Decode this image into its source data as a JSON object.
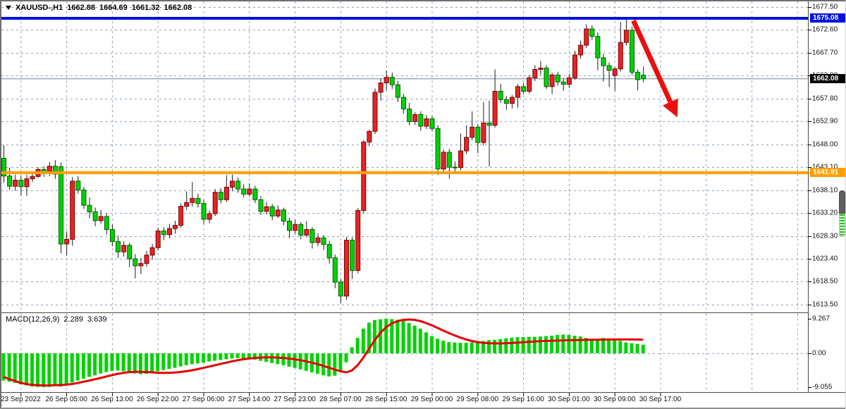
{
  "header": {
    "symbol": "XAUUSD-,H1",
    "open": "1662.88",
    "high": "1664.69",
    "low": "1661.32",
    "close": "1662.08"
  },
  "price_axis": {
    "labels": [
      "1677.50",
      "1672.60",
      "1667.70",
      "1662.80",
      "1657.80",
      "1652.90",
      "1648.00",
      "1643.10",
      "1638.10",
      "1633.20",
      "1628.30",
      "1623.40",
      "1618.50",
      "1613.50"
    ],
    "badges": {
      "resistance": {
        "text": "1675.08",
        "value": 1675.08
      },
      "current": {
        "text": "1662.08",
        "value": 1662.08
      },
      "support": {
        "text": "1641.91",
        "value": 1641.91
      }
    }
  },
  "time_axis": {
    "labels": [
      "23 Sep 2022",
      "26 Sep 05:00",
      "26 Sep 13:00",
      "26 Sep 22:00",
      "27 Sep 06:00",
      "27 Sep 14:00",
      "27 Sep 23:00",
      "28 Sep 07:00",
      "28 Sep 15:00",
      "29 Sep 00:00",
      "29 Sep 08:00",
      "29 Sep 16:00",
      "30 Sep 01:00",
      "30 Sep 09:00",
      "30 Sep 17:00"
    ],
    "first_label_bar_index": 3,
    "label_step_bars": 8
  },
  "macd_panel": {
    "name": "MACD(12,26,9)",
    "main_value": "2.289",
    "signal_value": "3.639",
    "axis_labels": [
      {
        "text": "9.267",
        "value": 9.267
      },
      {
        "text": "0.00",
        "value": 0
      },
      {
        "text": "-9.055",
        "value": -9.055
      }
    ]
  },
  "colors": {
    "bull_fill": "#e32525",
    "bull_stroke": "#7e0000",
    "bear_fill": "#00d300",
    "bear_stroke": "#005f00",
    "wick": "#1c1c1c",
    "grid": "#8ca0b8",
    "hline_resistance": "#0011dd",
    "hline_support": "#ff9f00",
    "current_price_line": "#708090",
    "badge_current_bg": "#000000",
    "macd_histogram": "#00d300",
    "macd_signal": "#e30000",
    "arrow": "#ea0f0f",
    "text": "#000000",
    "frame": "#6f6f6f"
  },
  "chart_data": {
    "type": "candlestick",
    "symbol": "XAUUSD",
    "timeframe": "H1",
    "color_note": "bullish candles red, bearish candles green (inverted scheme)",
    "price_axis_visible_range": [
      1613.5,
      1677.5
    ],
    "current_price": 1662.08,
    "hlines": [
      {
        "label": "1675.08",
        "price": 1675.08,
        "color": "#0011dd",
        "width": 4
      },
      {
        "label": "1641.91",
        "price": 1641.91,
        "color": "#ff9f00",
        "width": 4
      }
    ],
    "trend_arrow": {
      "from_bar": 110.3,
      "from_price": 1674.6,
      "to_bar": 118.0,
      "to_price": 1653.8
    },
    "candles_ohlc": [
      [
        1645.0,
        1647.8,
        1639.8,
        1641.2
      ],
      [
        1641.2,
        1643.0,
        1638.2,
        1639.0
      ],
      [
        1639.0,
        1641.5,
        1638.0,
        1640.3
      ],
      [
        1640.3,
        1641.2,
        1637.0,
        1638.9
      ],
      [
        1638.9,
        1641.5,
        1636.9,
        1640.6
      ],
      [
        1640.6,
        1642.2,
        1639.9,
        1641.1
      ],
      [
        1641.1,
        1643.1,
        1640.8,
        1642.6
      ],
      [
        1642.6,
        1643.3,
        1641.0,
        1641.9
      ],
      [
        1641.9,
        1644.2,
        1641.2,
        1643.3
      ],
      [
        1643.3,
        1644.6,
        1640.6,
        1641.6
      ],
      [
        1643.2,
        1644.1,
        1624.6,
        1626.6
      ],
      [
        1626.6,
        1629.3,
        1624.1,
        1627.6
      ],
      [
        1627.6,
        1641.0,
        1626.2,
        1640.1
      ],
      [
        1640.1,
        1641.2,
        1637.4,
        1638.2
      ],
      [
        1638.2,
        1638.9,
        1634.1,
        1634.9
      ],
      [
        1634.9,
        1636.6,
        1632.1,
        1633.5
      ],
      [
        1633.5,
        1634.4,
        1630.4,
        1631.6
      ],
      [
        1631.6,
        1633.9,
        1631.0,
        1632.5
      ],
      [
        1632.5,
        1633.1,
        1628.6,
        1629.7
      ],
      [
        1629.7,
        1630.8,
        1626.1,
        1627.1
      ],
      [
        1627.1,
        1628.4,
        1623.6,
        1624.9
      ],
      [
        1624.9,
        1627.2,
        1623.9,
        1626.3
      ],
      [
        1626.3,
        1626.9,
        1621.6,
        1623.4
      ],
      [
        1623.4,
        1624.4,
        1619.2,
        1621.9
      ],
      [
        1621.9,
        1623.6,
        1620.1,
        1622.4
      ],
      [
        1622.4,
        1625.1,
        1621.7,
        1624.2
      ],
      [
        1624.2,
        1626.6,
        1623.2,
        1625.8
      ],
      [
        1625.8,
        1630.1,
        1625.2,
        1629.4
      ],
      [
        1629.4,
        1630.2,
        1627.4,
        1628.6
      ],
      [
        1628.6,
        1630.9,
        1627.8,
        1629.9
      ],
      [
        1629.9,
        1631.6,
        1628.8,
        1630.6
      ],
      [
        1630.6,
        1635.3,
        1630.1,
        1634.7
      ],
      [
        1634.7,
        1637.9,
        1633.9,
        1635.5
      ],
      [
        1635.5,
        1639.9,
        1634.6,
        1636.4
      ],
      [
        1636.4,
        1637.4,
        1634.4,
        1635.3
      ],
      [
        1635.3,
        1636.1,
        1630.9,
        1631.9
      ],
      [
        1631.9,
        1633.8,
        1631.1,
        1633.1
      ],
      [
        1633.1,
        1638.4,
        1632.6,
        1637.7
      ],
      [
        1637.7,
        1638.6,
        1635.3,
        1636.1
      ],
      [
        1636.1,
        1641.4,
        1635.6,
        1638.8
      ],
      [
        1638.8,
        1641.5,
        1637.9,
        1640.1
      ],
      [
        1640.1,
        1640.9,
        1637.6,
        1638.4
      ],
      [
        1638.4,
        1639.4,
        1636.6,
        1637.3
      ],
      [
        1637.3,
        1639.6,
        1636.8,
        1638.4
      ],
      [
        1638.4,
        1639.1,
        1635.4,
        1636.1
      ],
      [
        1636.1,
        1636.9,
        1632.8,
        1633.6
      ],
      [
        1633.6,
        1635.6,
        1632.9,
        1634.6
      ],
      [
        1634.6,
        1635.2,
        1631.7,
        1632.6
      ],
      [
        1632.6,
        1634.9,
        1632.1,
        1633.9
      ],
      [
        1633.9,
        1634.4,
        1630.6,
        1631.5
      ],
      [
        1631.5,
        1632.2,
        1627.9,
        1629.5
      ],
      [
        1629.5,
        1631.8,
        1628.8,
        1630.8
      ],
      [
        1630.8,
        1631.3,
        1627.6,
        1628.5
      ],
      [
        1628.5,
        1631.5,
        1628.0,
        1629.7
      ],
      [
        1629.7,
        1630.2,
        1625.6,
        1626.9
      ],
      [
        1626.9,
        1628.9,
        1626.1,
        1627.9
      ],
      [
        1627.9,
        1628.5,
        1625.3,
        1626.5
      ],
      [
        1626.5,
        1627.3,
        1622.4,
        1623.6
      ],
      [
        1623.6,
        1624.3,
        1617.1,
        1618.4
      ],
      [
        1618.4,
        1619.0,
        1613.9,
        1615.4
      ],
      [
        1615.4,
        1628.1,
        1614.6,
        1627.4
      ],
      [
        1627.4,
        1628.0,
        1619.1,
        1620.9
      ],
      [
        1620.9,
        1634.3,
        1620.3,
        1633.8
      ],
      [
        1633.8,
        1648.9,
        1633.2,
        1648.5
      ],
      [
        1648.5,
        1651.1,
        1647.6,
        1650.8
      ],
      [
        1650.8,
        1660.0,
        1650.2,
        1659.2
      ],
      [
        1659.2,
        1662.1,
        1657.4,
        1661.2
      ],
      [
        1661.2,
        1663.9,
        1659.6,
        1662.4
      ],
      [
        1662.4,
        1663.4,
        1659.9,
        1660.8
      ],
      [
        1660.8,
        1661.6,
        1657.1,
        1658.1
      ],
      [
        1658.1,
        1658.8,
        1654.6,
        1655.6
      ],
      [
        1655.6,
        1656.9,
        1652.1,
        1652.9
      ],
      [
        1652.9,
        1654.9,
        1652.2,
        1654.4
      ],
      [
        1654.4,
        1655.1,
        1650.9,
        1651.9
      ],
      [
        1651.9,
        1654.3,
        1651.3,
        1653.5
      ],
      [
        1653.5,
        1654.1,
        1650.8,
        1651.4
      ],
      [
        1651.4,
        1652.1,
        1641.4,
        1642.7
      ],
      [
        1642.7,
        1646.9,
        1641.9,
        1646.3
      ],
      [
        1646.3,
        1647.0,
        1640.6,
        1643.1
      ],
      [
        1643.1,
        1644.3,
        1641.6,
        1643.0
      ],
      [
        1643.0,
        1650.3,
        1642.4,
        1646.6
      ],
      [
        1646.6,
        1652.1,
        1645.9,
        1649.5
      ],
      [
        1649.5,
        1655.1,
        1648.9,
        1651.7
      ],
      [
        1651.7,
        1652.4,
        1646.1,
        1648.4
      ],
      [
        1648.4,
        1657.1,
        1647.8,
        1652.6
      ],
      [
        1652.6,
        1657.4,
        1643.2,
        1652.1
      ],
      [
        1652.1,
        1664.1,
        1651.6,
        1659.4
      ],
      [
        1659.4,
        1661.0,
        1656.9,
        1657.6
      ],
      [
        1657.6,
        1658.4,
        1655.4,
        1656.8
      ],
      [
        1656.8,
        1658.6,
        1655.7,
        1658.1
      ],
      [
        1658.1,
        1661.0,
        1655.9,
        1660.4
      ],
      [
        1660.4,
        1661.2,
        1658.8,
        1659.4
      ],
      [
        1659.4,
        1662.9,
        1658.9,
        1662.3
      ],
      [
        1662.3,
        1665.0,
        1661.6,
        1664.1
      ],
      [
        1664.1,
        1665.9,
        1662.9,
        1664.4
      ],
      [
        1664.4,
        1665.0,
        1659.9,
        1660.4
      ],
      [
        1660.4,
        1663.4,
        1658.8,
        1662.9
      ],
      [
        1662.9,
        1663.6,
        1660.6,
        1661.4
      ],
      [
        1661.4,
        1662.2,
        1659.5,
        1660.9
      ],
      [
        1660.9,
        1663.1,
        1660.1,
        1662.3
      ],
      [
        1662.3,
        1668.1,
        1661.9,
        1667.2
      ],
      [
        1667.2,
        1670.3,
        1666.4,
        1669.3
      ],
      [
        1669.3,
        1673.8,
        1668.7,
        1672.8
      ],
      [
        1672.8,
        1673.6,
        1670.4,
        1671.2
      ],
      [
        1671.2,
        1672.1,
        1663.9,
        1666.6
      ],
      [
        1666.6,
        1667.4,
        1661.5,
        1664.9
      ],
      [
        1664.9,
        1665.6,
        1660.3,
        1663.9
      ],
      [
        1662.8,
        1664.6,
        1659.5,
        1664.2
      ],
      [
        1664.2,
        1674.3,
        1663.6,
        1669.9
      ],
      [
        1669.9,
        1674.9,
        1669.2,
        1672.5
      ],
      [
        1672.5,
        1673.3,
        1662.9,
        1663.5
      ],
      [
        1663.5,
        1664.1,
        1659.6,
        1661.9
      ],
      [
        1662.88,
        1664.69,
        1661.32,
        1662.08
      ]
    ],
    "indicator": {
      "type": "macd",
      "params": [
        12,
        26,
        9
      ],
      "range": [
        -9.055,
        9.267
      ],
      "current_histogram": 2.289,
      "current_signal": 3.639,
      "histogram": [
        -7.3,
        -7.6,
        -7.9,
        -8.3,
        -8.6,
        -8.9,
        -9.0,
        -9.055,
        -9.0,
        -8.8,
        -8.9,
        -8.6,
        -7.8,
        -7.3,
        -6.8,
        -6.3,
        -5.9,
        -5.4,
        -5.0,
        -4.7,
        -4.6,
        -4.8,
        -5.1,
        -5.4,
        -5.6,
        -5.5,
        -5.2,
        -4.8,
        -4.5,
        -4.2,
        -3.9,
        -3.5,
        -3.2,
        -2.9,
        -2.7,
        -2.5,
        -2.2,
        -2.0,
        -1.8,
        -1.6,
        -1.4,
        -1.3,
        -1.4,
        -1.5,
        -1.7,
        -2.0,
        -2.3,
        -2.6,
        -2.9,
        -3.2,
        -3.6,
        -3.9,
        -4.3,
        -4.7,
        -5.1,
        -5.5,
        -5.9,
        -6.2,
        -6.0,
        -4.9,
        -2.4,
        1.6,
        4.1,
        6.6,
        8.2,
        8.9,
        9.1,
        9.267,
        9.15,
        9.0,
        8.7,
        8.1,
        7.4,
        6.6,
        5.6,
        4.6,
        3.9,
        3.4,
        3.0,
        2.9,
        2.8,
        2.8,
        2.9,
        3.1,
        3.3,
        3.5,
        3.6,
        3.8,
        4.0,
        4.2,
        4.3,
        4.3,
        4.4,
        4.4,
        4.5,
        4.6,
        4.7,
        4.9,
        5.0,
        4.9,
        4.7,
        4.5,
        4.1,
        3.9,
        3.9,
        4.1,
        3.9,
        3.6,
        3.3,
        2.9,
        2.7,
        2.5,
        2.289
      ],
      "signal": [
        -6.3,
        -6.9,
        -7.4,
        -7.9,
        -8.2,
        -8.45,
        -8.55,
        -8.6,
        -8.6,
        -8.55,
        -8.5,
        -8.4,
        -8.2,
        -7.95,
        -7.6,
        -7.3,
        -6.95,
        -6.6,
        -6.2,
        -5.85,
        -5.5,
        -5.25,
        -5.05,
        -4.95,
        -4.95,
        -5.0,
        -5.1,
        -5.2,
        -5.25,
        -5.25,
        -5.15,
        -5.0,
        -4.8,
        -4.55,
        -4.25,
        -3.9,
        -3.55,
        -3.2,
        -2.85,
        -2.5,
        -2.15,
        -1.85,
        -1.6,
        -1.4,
        -1.25,
        -1.15,
        -1.1,
        -1.1,
        -1.15,
        -1.25,
        -1.4,
        -1.6,
        -1.85,
        -2.15,
        -2.5,
        -2.9,
        -3.35,
        -3.85,
        -4.35,
        -4.8,
        -5.1,
        -4.6,
        -3.2,
        -1.2,
        1.2,
        3.5,
        5.5,
        7.0,
        8.0,
        8.6,
        8.95,
        9.05,
        8.95,
        8.6,
        8.1,
        7.5,
        6.8,
        6.1,
        5.4,
        4.8,
        4.2,
        3.7,
        3.3,
        3.0,
        2.8,
        2.7,
        2.65,
        2.65,
        2.7,
        2.75,
        2.85,
        2.95,
        3.05,
        3.15,
        3.25,
        3.3,
        3.35,
        3.4,
        3.45,
        3.5,
        3.5,
        3.55,
        3.6,
        3.6,
        3.65,
        3.65,
        3.7,
        3.7,
        3.7,
        3.7,
        3.7,
        3.68,
        3.639
      ]
    }
  }
}
